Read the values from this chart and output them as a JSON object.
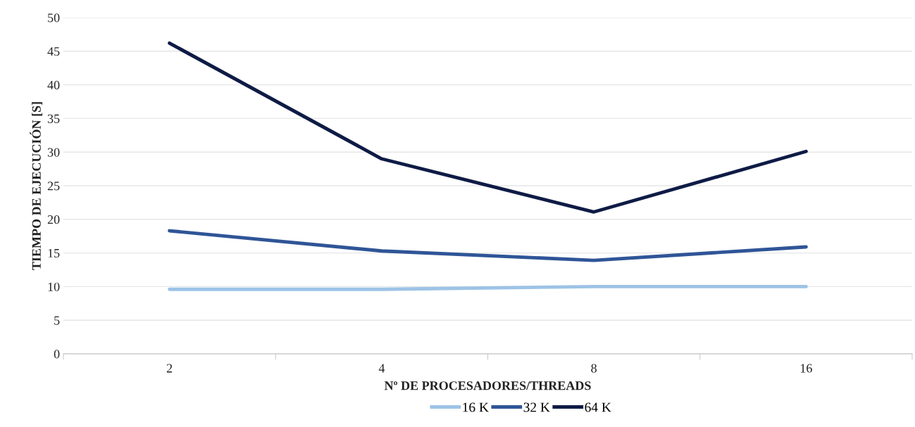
{
  "chart_data": {
    "type": "line",
    "xlabel": "Nº DE PROCESADORES/THREADS",
    "ylabel": "TIEMPO DE EJECUCIÓN [S]",
    "categories": [
      "2",
      "4",
      "8",
      "16"
    ],
    "series": [
      {
        "name": "16 K",
        "color": "#9dc3e6",
        "values": [
          9.6,
          9.6,
          10.0,
          10.0
        ]
      },
      {
        "name": "32 K",
        "color": "#2f5597",
        "values": [
          18.3,
          15.3,
          13.9,
          15.9
        ]
      },
      {
        "name": "64 K",
        "color": "#0e1b45",
        "values": [
          46.2,
          29.0,
          21.1,
          30.1
        ]
      }
    ],
    "ylim": [
      0,
      50
    ],
    "yticks": [
      0,
      5,
      10,
      15,
      20,
      25,
      30,
      35,
      40,
      45,
      50
    ],
    "grid": "y",
    "legend": "bottom",
    "marker": "none",
    "line_style": "solid"
  }
}
